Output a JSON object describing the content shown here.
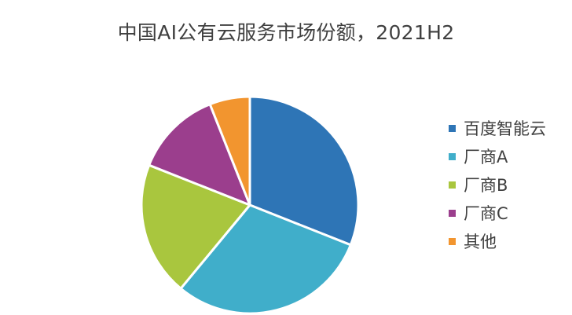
{
  "chart_data": {
    "type": "pie",
    "title": "中国AI公有云服务市场份额，2021H2",
    "categories": [
      "百度智能云",
      "厂商A",
      "厂商B",
      "厂商C",
      "其他"
    ],
    "values": [
      31,
      30,
      20,
      13,
      6
    ],
    "colors": [
      "#2E75B6",
      "#40AECA",
      "#A9C63E",
      "#9B3E8D",
      "#F2952F"
    ],
    "legend_position": "right"
  }
}
